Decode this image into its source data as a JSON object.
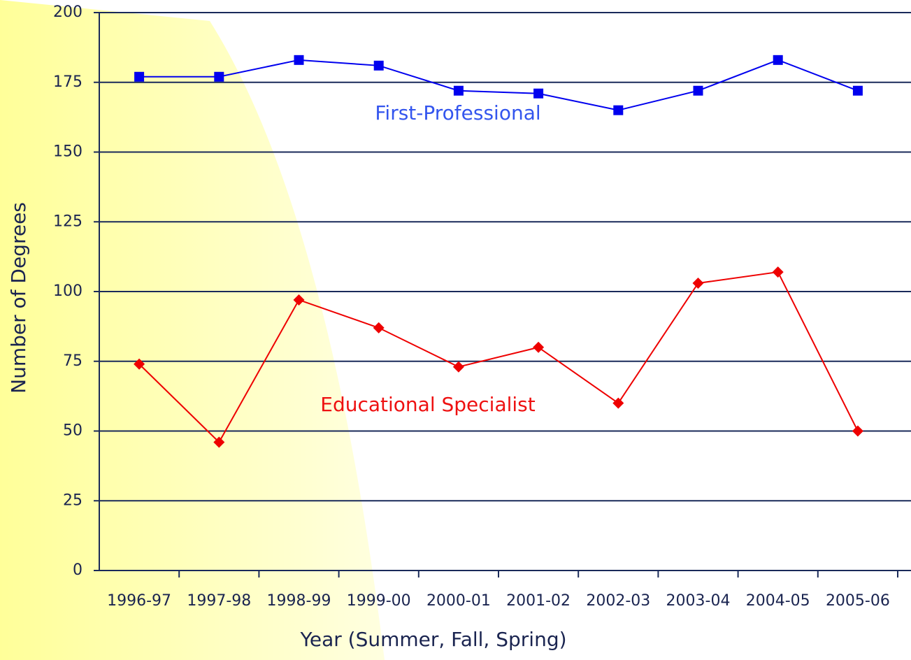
{
  "chart_data": {
    "type": "line",
    "x_label": "Year (Summer, Fall, Spring)",
    "y_label": "Number of Degrees",
    "categories": [
      "1996-97",
      "1997-98",
      "1998-99",
      "1999-00",
      "2000-01",
      "2001-02",
      "2002-03",
      "2003-04",
      "2004-05",
      "2005-06"
    ],
    "series": [
      {
        "name": "First-Professional",
        "color": "#0000ee",
        "marker": "square",
        "values": [
          177,
          177,
          183,
          181,
          172,
          171,
          165,
          172,
          183,
          172
        ]
      },
      {
        "name": "Educational Specialist",
        "color": "#ee0000",
        "marker": "diamond",
        "values": [
          74,
          46,
          97,
          87,
          73,
          80,
          60,
          103,
          107,
          50
        ]
      }
    ],
    "annotations": [
      {
        "text": "First-Professional",
        "color": "#3355ee"
      },
      {
        "text": "Educational Specialist",
        "color": "#ee1111"
      }
    ],
    "ylim": [
      0,
      200
    ],
    "yticks": [
      0,
      25,
      50,
      75,
      100,
      125,
      150,
      175,
      200
    ],
    "grid": true
  }
}
